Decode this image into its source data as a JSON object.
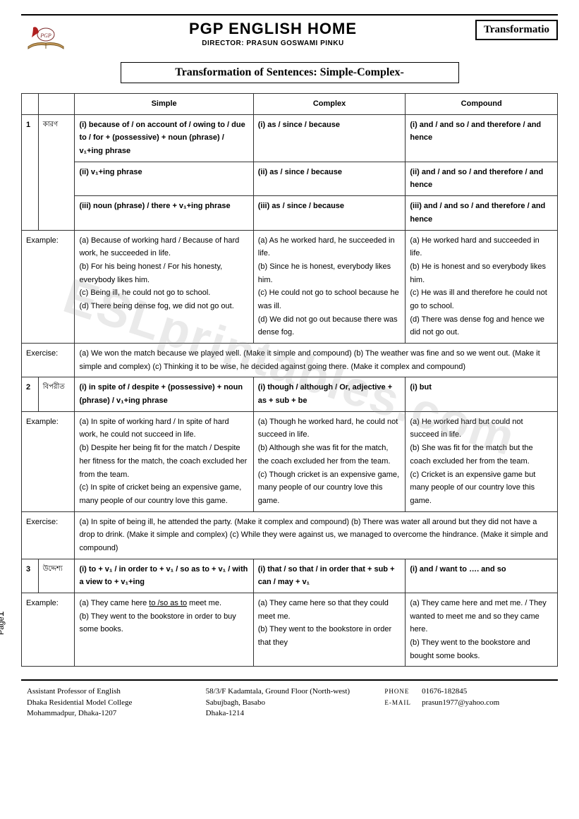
{
  "header": {
    "main_title": "PGP ENGLISH HOME",
    "director": "DIRECTOR: PRASUN GOSWAMI PINKU",
    "badge": "Transformatio",
    "subtitle": "Transformation of Sentences: Simple-Complex-"
  },
  "columns": {
    "simple": "Simple",
    "complex": "Complex",
    "compound": "Compound"
  },
  "sections": [
    {
      "num": "1",
      "cat": "কারণ",
      "rules": [
        {
          "simple": "(i) because of / on account of / owing to / due to / for + (possessive) + noun (phrase) / v₁+ing phrase",
          "complex": "(i) as / since / because",
          "compound": "(i) and / and so / and therefore / and hence"
        },
        {
          "simple": "(ii) v₁+ing phrase",
          "complex": "(ii) as / since / because",
          "compound": "(ii) and / and so / and therefore / and hence"
        },
        {
          "simple": "(iii) noun (phrase) / there +  v₁+ing phrase",
          "complex": "(iii) as / since / because",
          "compound": "(iii) and / and so / and therefore / and hence"
        }
      ],
      "example_label": "Example:",
      "example": {
        "simple": "(a) Because of working hard / Because of hard work, he succeeded in life.\n(b) For his being honest / For his honesty, everybody likes him.\n(c) Being ill, he could not go to school.\n(d) There being dense fog, we did not go out.",
        "complex": "(a) As he worked hard, he succeeded in life.\n(b) Since he is honest, everybody likes him.\n(c) He could not go to school because he was ill.\n(d) We did not go out because there was dense fog.",
        "compound": "(a) He worked hard and succeeded in life.\n(b) He is honest and so everybody likes him.\n(c) He was ill and therefore he could not go to school.\n(d) There was dense fog and hence we did not go out."
      },
      "exercise_label": "Exercise:",
      "exercise": "(a) We won the match because we played well. (Make it simple and compound) (b) The weather was fine and so we went out. (Make it simple and complex) (c) Thinking it to be wise, he decided against going there. (Make it complex and compound)"
    },
    {
      "num": "2",
      "cat": "বিপরীত",
      "rules": [
        {
          "simple": "(i) in spite of / despite + (possessive) + noun (phrase) / v₁+ing phrase",
          "complex": "(i) though / although / Or, adjective + as + sub + be",
          "compound": "(i) but"
        }
      ],
      "example_label": "Example:",
      "example": {
        "simple": "(a) In spite of working hard / In spite of hard work, he could not succeed in life.\n(b) Despite her being fit for the match / Despite her fitness for the match, the coach excluded her from the team.\n(c) In spite of cricket being an expensive game, many people of our country love this game.",
        "complex": "(a) Though he worked hard, he could not succeed in life.\n(b) Although she was fit for the match, the coach excluded her from the team.\n(c) Though cricket is an expensive game, many people of our country love this game.",
        "compound": "(a) He worked hard but could not succeed in life.\n(b) She was fit for the match but the coach excluded her from the team.\n(c) Cricket is an expensive game but many people of our country love this game."
      },
      "exercise_label": "Exercise:",
      "exercise": "(a) In spite of being ill, he attended the party. (Make it complex and compound) (b) There was water all around but they did not have a drop to drink. (Make it simple and complex) (c) While they were against us, we managed to overcome the hindrance. (Make it simple and compound)"
    },
    {
      "num": "3",
      "cat": "উদ্দেশ্য",
      "rules": [
        {
          "simple": "(i) to + v₁ / in order to + v₁ / so as to + v₁ / with a view to + v₁+ing",
          "complex": "(i) that / so that / in order that + sub + can / may + v₁",
          "compound": "(i) and / want to …. and so"
        }
      ],
      "example_label": "Example:",
      "example": {
        "simple_html": "(a) They came here <span class='underline'>to /so as to</span> meet me.\n(b) They went to the bookstore in order to buy some books.",
        "complex": "(a) They came here so that they could meet me.\n(b) They went to the bookstore in order that they",
        "compound": "(a) They came here and met me. / They wanted to meet me and so they came here.\n(b) They went to the bookstore and bought some books."
      }
    }
  ],
  "page_label": "Page",
  "page_number": "1",
  "watermark": "ESLprintables.com",
  "footer": {
    "col1": "Assistant Professor of English\nDhaka Residential Model College\nMohammadpur, Dhaka-1207",
    "col2": "58/3/F Kadamtala, Ground Floor (North-west)\nSabujbagh, Basabo\nDhaka-1214",
    "phone_label": "PHONE",
    "phone": "01676-182845",
    "email_label": "E-MAIL",
    "email": "prasun1977@yahoo.com"
  }
}
